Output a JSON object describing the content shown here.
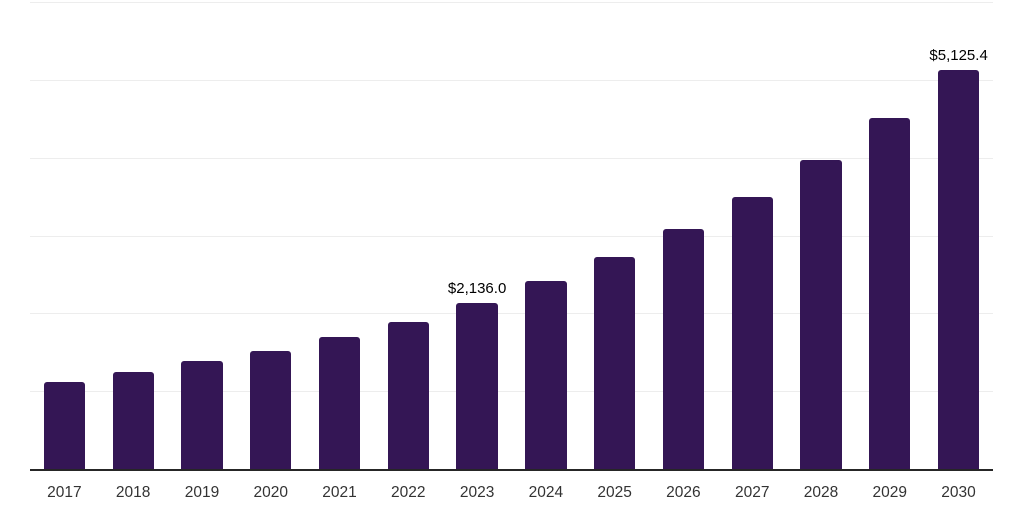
{
  "chart_data": {
    "type": "bar",
    "title": "",
    "xlabel": "",
    "ylabel": "",
    "categories": [
      "2017",
      "2018",
      "2019",
      "2020",
      "2021",
      "2022",
      "2023",
      "2024",
      "2025",
      "2026",
      "2027",
      "2028",
      "2029",
      "2030"
    ],
    "values": [
      1120,
      1242,
      1382,
      1517,
      1690,
      1894,
      2136.0,
      2417,
      2724,
      3078,
      3492,
      3974,
      4508,
      5125.4
    ],
    "data_labels": {
      "2023": "$2,136.0",
      "2030": "$5,125.4"
    },
    "ylim": [
      0,
      6000
    ],
    "gridline_step": 1000,
    "grid": true,
    "legend": false
  },
  "colors": {
    "bar": "#341655",
    "axis_line": "#262626",
    "gridline": "#ededed",
    "data_label": "#000000",
    "tick_label": "#333333",
    "background": "#ffffff"
  }
}
